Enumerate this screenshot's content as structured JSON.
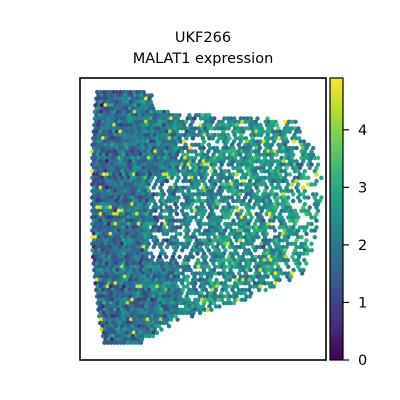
{
  "chart_data": {
    "type": "scatter",
    "subtype": "spatial-transcriptomics-spot-plot",
    "title_line1": "UKF266",
    "title_line2": "MALAT1 expression",
    "xlabel": "",
    "ylabel": "",
    "colormap": "viridis",
    "colorbar": {
      "min": 0,
      "max": 4.9,
      "ticks": [
        0,
        1,
        2,
        3,
        4
      ],
      "tick_labels": [
        "0",
        "1",
        "2",
        "3",
        "4"
      ]
    },
    "viridis_stops": [
      "#440154",
      "#482878",
      "#3e4989",
      "#31688e",
      "#26828e",
      "#1f9e89",
      "#35b779",
      "#6ece58",
      "#b5de2b",
      "#fde725"
    ],
    "grid": false,
    "legend": "colorbar-right",
    "tissue_region": {
      "description_unit": "normalized spot coordinates",
      "rows": [
        {
          "y": 0.05,
          "x_left": 0.07,
          "x_right": 0.28
        },
        {
          "y": 0.12,
          "x_left": 0.06,
          "x_right": 0.36
        },
        {
          "y": 0.15,
          "x_left": 0.06,
          "x_right": 0.88
        },
        {
          "y": 0.25,
          "x_left": 0.05,
          "x_right": 0.95
        },
        {
          "y": 0.3,
          "x_left": 0.05,
          "x_right": 0.99
        },
        {
          "y": 0.45,
          "x_left": 0.05,
          "x_right": 0.98
        },
        {
          "y": 0.6,
          "x_left": 0.05,
          "x_right": 0.95
        },
        {
          "y": 0.7,
          "x_left": 0.06,
          "x_right": 0.9
        },
        {
          "y": 0.78,
          "x_left": 0.07,
          "x_right": 0.7
        },
        {
          "y": 0.86,
          "x_left": 0.08,
          "x_right": 0.4
        },
        {
          "y": 0.94,
          "x_left": 0.1,
          "x_right": 0.25
        }
      ],
      "expression_profile": {
        "left_mean": 1.6,
        "right_mean": 2.5,
        "max_observed": 4.9
      }
    }
  }
}
